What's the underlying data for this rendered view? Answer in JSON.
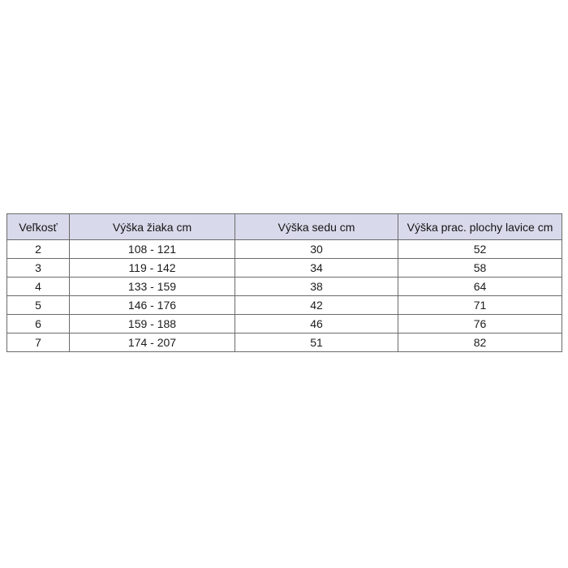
{
  "chart_data": {
    "type": "table",
    "title": "",
    "columns": [
      "Veľkosť",
      "Výška žiaka cm",
      "Výška sedu cm",
      "Výška prac. plochy lavice cm"
    ],
    "rows": [
      [
        "2",
        "108 - 121",
        "30",
        "52"
      ],
      [
        "3",
        "119 - 142",
        "34",
        "58"
      ],
      [
        "4",
        "133 - 159",
        "38",
        "64"
      ],
      [
        "5",
        "146 - 176",
        "42",
        "71"
      ],
      [
        "6",
        "159 - 188",
        "46",
        "76"
      ],
      [
        "7",
        "174 - 207",
        "51",
        "82"
      ]
    ],
    "layout": {
      "header_position": "top",
      "text_align": "center",
      "grid": "full"
    }
  },
  "colors": {
    "header_bg": "#d8daeb",
    "border": "#6b6b6b",
    "text": "#1c1c1c",
    "page_bg": "#ffffff"
  }
}
